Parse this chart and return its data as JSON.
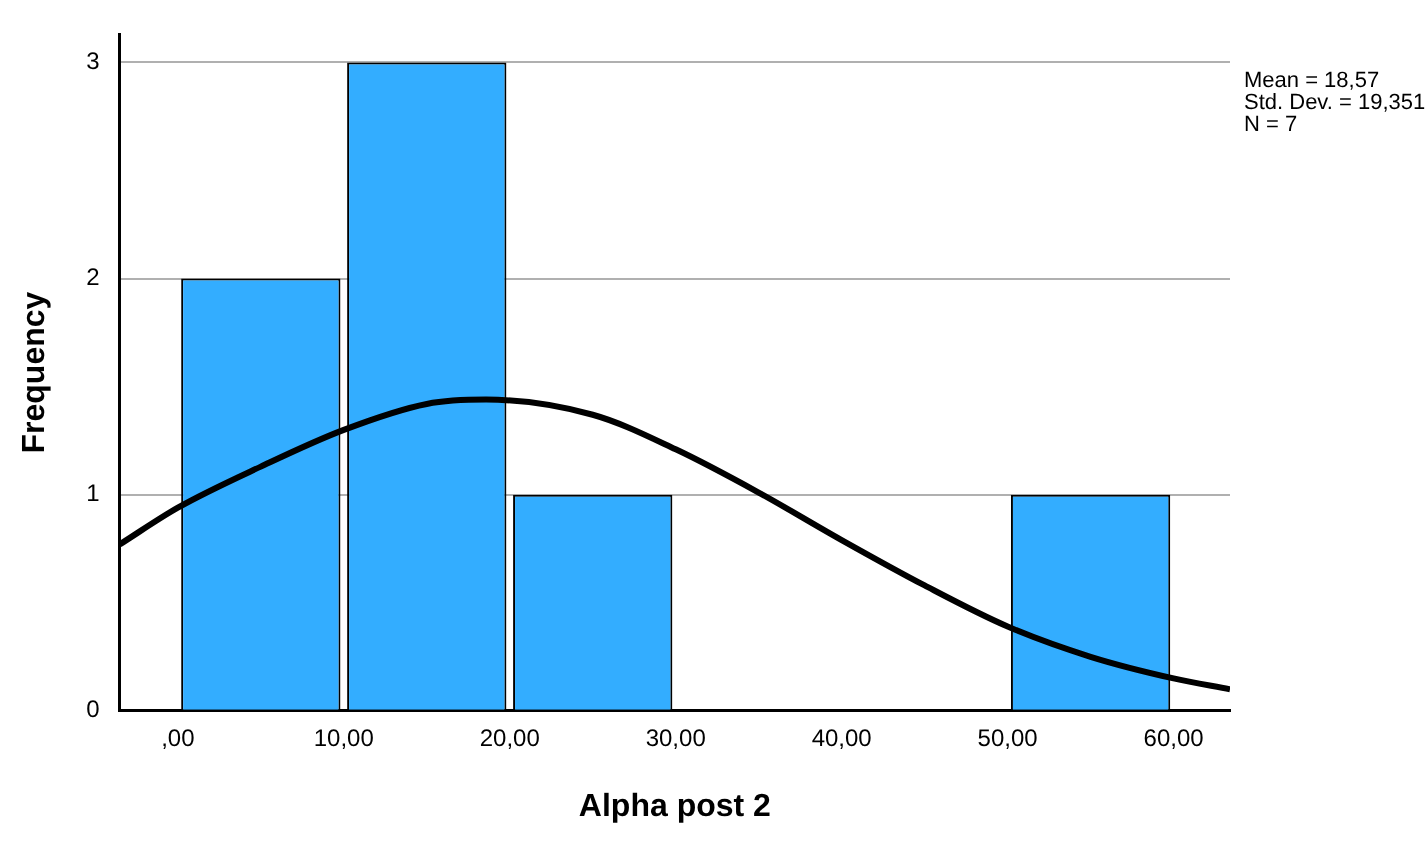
{
  "chart_data": {
    "type": "histogram",
    "xlabel": "Alpha post 2",
    "ylabel": "Frequency",
    "bins": [
      0,
      10,
      20,
      30,
      40,
      50,
      60
    ],
    "values": [
      2,
      3,
      1,
      0,
      0,
      1
    ],
    "color": "#33adff",
    "series": [
      {
        "type": "line",
        "color": "#000000",
        "x": [
          -3.5,
          0,
          5,
          10,
          15,
          18.57,
          25,
          30,
          35,
          40,
          45,
          50,
          55,
          60,
          63.4
        ],
        "values": [
          0.77,
          0.94,
          1.13,
          1.3,
          1.42,
          1.44,
          1.37,
          1.21,
          1.01,
          0.79,
          0.58,
          0.39,
          0.25,
          0.15,
          0.1
        ]
      }
    ],
    "xlim": [
      -3.5,
      63.4
    ],
    "ylim": [
      0,
      3.13
    ],
    "xticks": [
      {
        "value": 0,
        "label": ",00"
      },
      {
        "value": 10,
        "label": "10,00"
      },
      {
        "value": 20,
        "label": "20,00"
      },
      {
        "value": 30,
        "label": "30,00"
      },
      {
        "value": 40,
        "label": "40,00"
      },
      {
        "value": 50,
        "label": "50,00"
      },
      {
        "value": 60,
        "label": "60,00"
      }
    ],
    "yticks": [
      0,
      1,
      2,
      3
    ],
    "grid": "y",
    "legend": false,
    "marker": "none",
    "line_style": "solid",
    "annotations": [
      "Mean = 18,57",
      "Std. Dev. = 19,351",
      "N = 7"
    ]
  }
}
